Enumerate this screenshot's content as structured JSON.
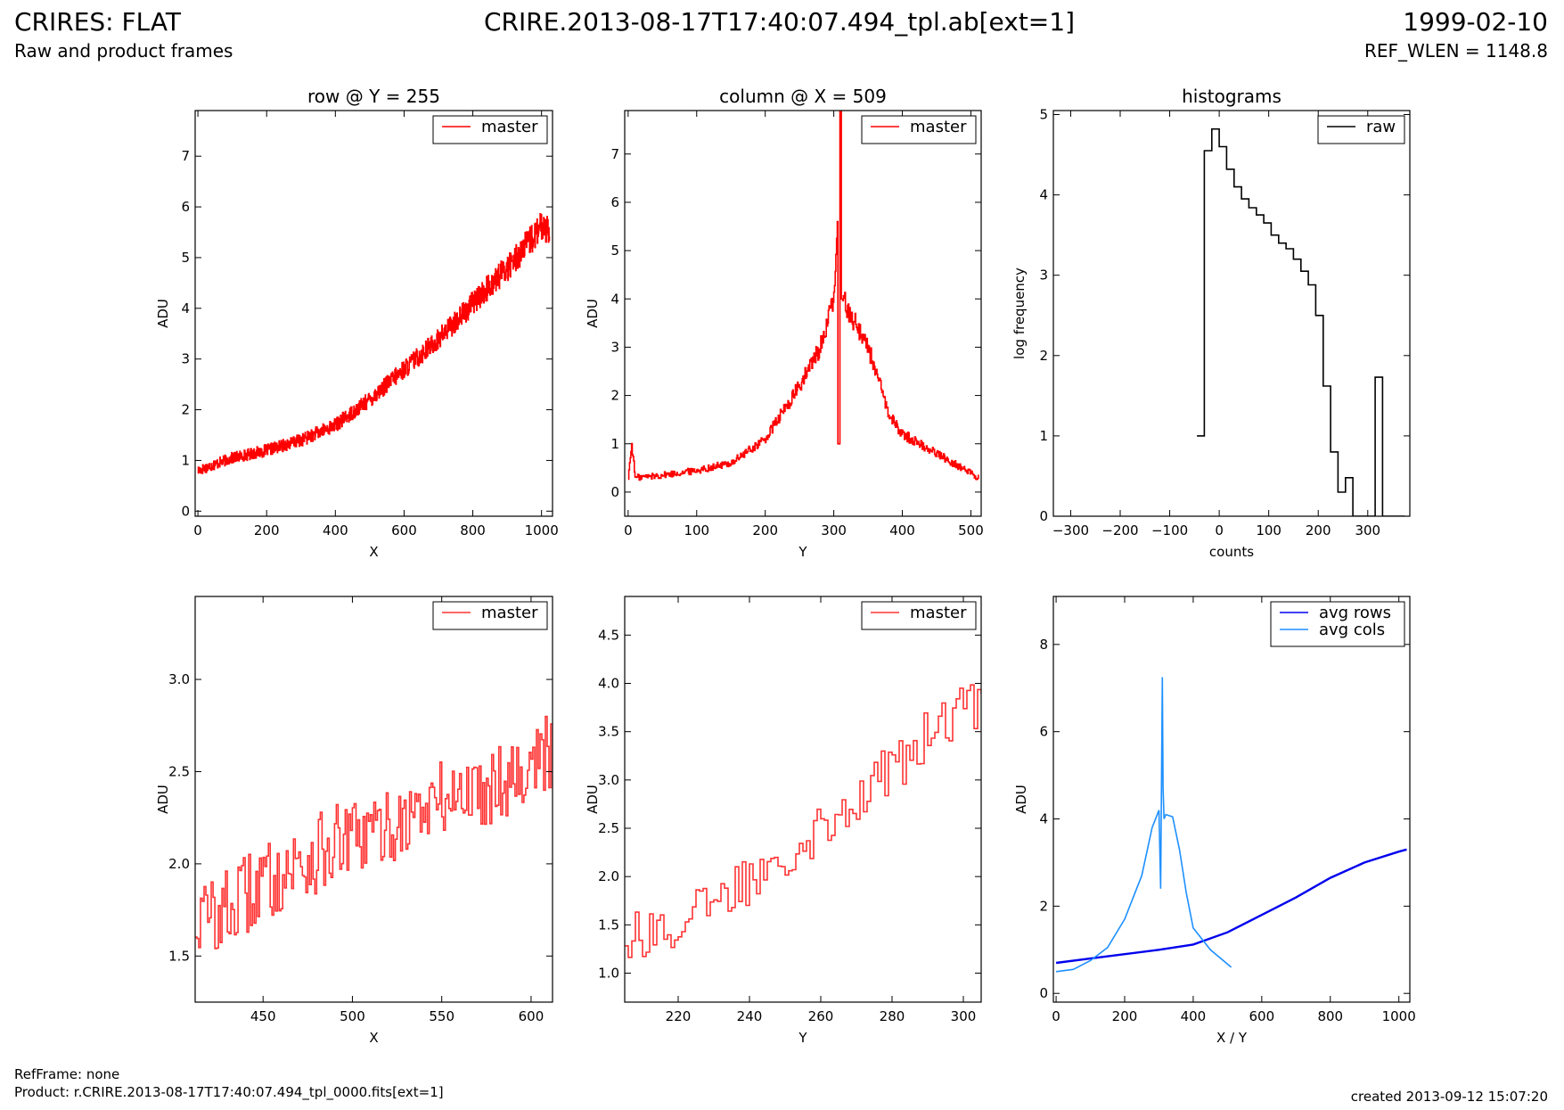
{
  "header": {
    "title_left": "CRIRES: FLAT",
    "subtitle_left": "Raw and product frames",
    "title_center": "CRIRE.2013-08-17T17:40:07.494_tpl.ab[ext=1]",
    "title_right": "1999-02-10",
    "subtitle_right": "REF_WLEN = 1148.8"
  },
  "footer": {
    "refframe": "RefFrame: none",
    "product": "Product: r.CRIRE.2013-08-17T17:40:07.494_tpl_0000.fits[ext=1]",
    "created": "created 2013-09-12 15:07:20"
  },
  "colors": {
    "master": "#ff0000",
    "raw": "#000000",
    "avg_rows": "#0000ee",
    "avg_cols": "#1e90ff"
  },
  "chart_data": [
    {
      "type": "line",
      "title": "row @ Y = 255",
      "xlabel": "X",
      "ylabel": "ADU",
      "xlim": [
        -8,
        1032
      ],
      "ylim": [
        -0.1,
        7.9
      ],
      "xticks": [
        0,
        200,
        400,
        600,
        800,
        1000
      ],
      "yticks": [
        0,
        1,
        2,
        3,
        4,
        5,
        6,
        7
      ],
      "legend": "top-right",
      "series": [
        {
          "name": "master",
          "color": "#ff0000",
          "step": true,
          "x": [
            0,
            100,
            200,
            300,
            400,
            500,
            600,
            700,
            800,
            900,
            1000,
            1023
          ],
          "y": [
            0.8,
            1.05,
            1.2,
            1.4,
            1.7,
            2.2,
            2.8,
            3.4,
            4.1,
            4.8,
            5.6,
            5.6
          ]
        }
      ]
    },
    {
      "type": "line",
      "title": "column @ X = 509",
      "xlabel": "Y",
      "ylabel": "ADU",
      "xlim": [
        -5,
        515
      ],
      "ylim": [
        -0.5,
        7.9
      ],
      "xticks": [
        0,
        100,
        200,
        300,
        400,
        500
      ],
      "yticks": [
        0,
        1,
        2,
        3,
        4,
        5,
        6,
        7
      ],
      "legend": "top-right",
      "series": [
        {
          "name": "master",
          "color": "#ff0000",
          "step": true,
          "x": [
            0,
            5,
            10,
            50,
            100,
            150,
            200,
            250,
            280,
            300,
            305,
            306,
            308,
            309,
            310,
            311,
            312,
            320,
            350,
            380,
            400,
            450,
            511
          ],
          "y": [
            0.3,
            1.0,
            0.3,
            0.35,
            0.45,
            0.6,
            1.1,
            2.2,
            3.0,
            4.0,
            5.6,
            1.0,
            1.0,
            8.0,
            8.0,
            4.0,
            4.0,
            3.8,
            3.0,
            1.6,
            1.2,
            0.8,
            0.3
          ]
        }
      ]
    },
    {
      "type": "line",
      "title": "histograms",
      "xlabel": "counts",
      "ylabel": "log frequency",
      "xlim": [
        -335,
        385
      ],
      "ylim": [
        0,
        5.05
      ],
      "xticks": [
        -300,
        -200,
        -100,
        0,
        100,
        200,
        300
      ],
      "yticks": [
        0,
        1,
        2,
        3,
        4,
        5
      ],
      "legend": "top-right",
      "series": [
        {
          "name": "raw",
          "color": "#000000",
          "step": true,
          "x": [
            -45,
            -30,
            -15,
            0,
            15,
            30,
            45,
            60,
            75,
            90,
            105,
            120,
            135,
            150,
            165,
            180,
            195,
            210,
            225,
            240,
            255,
            270,
            285,
            300,
            315,
            330,
            345,
            360,
            375
          ],
          "y": [
            1.0,
            4.55,
            4.82,
            4.6,
            4.32,
            4.1,
            3.95,
            3.84,
            3.75,
            3.65,
            3.5,
            3.4,
            3.33,
            3.2,
            3.05,
            2.88,
            2.5,
            1.62,
            0.8,
            0.3,
            0.48,
            0,
            0,
            0,
            1.73,
            0,
            0,
            0,
            0
          ]
        }
      ]
    },
    {
      "type": "line",
      "title": "",
      "xlabel": "X",
      "ylabel": "ADU",
      "xlim": [
        412,
        612
      ],
      "ylim": [
        1.25,
        3.45
      ],
      "xticks": [
        450,
        500,
        550,
        600
      ],
      "yticks": [
        1.5,
        2.0,
        2.5,
        3.0
      ],
      "legend": "top-right",
      "series": [
        {
          "name": "master",
          "color": "#ff3333",
          "step": true,
          "x": [
            412,
            430,
            450,
            470,
            490,
            510,
            530,
            550,
            570,
            590,
            612
          ],
          "y": [
            1.7,
            1.75,
            1.9,
            2.0,
            2.1,
            2.15,
            2.25,
            2.35,
            2.4,
            2.5,
            2.6
          ]
        }
      ]
    },
    {
      "type": "line",
      "title": "",
      "xlabel": "Y",
      "ylabel": "ADU",
      "xlim": [
        205,
        305
      ],
      "ylim": [
        0.7,
        4.9
      ],
      "xticks": [
        220,
        240,
        260,
        280,
        300
      ],
      "yticks": [
        1.0,
        1.5,
        2.0,
        2.5,
        3.0,
        3.5,
        4.0,
        4.5
      ],
      "legend": "top-right",
      "series": [
        {
          "name": "master",
          "color": "#ff3333",
          "step": true,
          "x": [
            205,
            215,
            225,
            235,
            245,
            255,
            265,
            275,
            285,
            295,
            305
          ],
          "y": [
            1.4,
            1.45,
            1.6,
            1.85,
            2.15,
            2.4,
            2.7,
            2.95,
            3.3,
            3.6,
            3.85
          ]
        }
      ]
    },
    {
      "type": "line",
      "title": "",
      "xlabel": "X / Y",
      "ylabel": "ADU",
      "xlim": [
        -8,
        1032
      ],
      "ylim": [
        -0.2,
        9.1
      ],
      "xticks": [
        0,
        200,
        400,
        600,
        800,
        1000
      ],
      "yticks": [
        0,
        2,
        4,
        6,
        8
      ],
      "legend": "top-right",
      "series": [
        {
          "name": "avg rows",
          "color": "#0000ee",
          "x": [
            0,
            100,
            200,
            300,
            400,
            500,
            600,
            700,
            800,
            900,
            1000,
            1023
          ],
          "y": [
            0.7,
            0.8,
            0.9,
            1.0,
            1.12,
            1.4,
            1.8,
            2.2,
            2.65,
            3.0,
            3.25,
            3.3
          ]
        },
        {
          "name": "avg cols",
          "color": "#1e90ff",
          "x": [
            0,
            50,
            100,
            150,
            200,
            250,
            280,
            300,
            305,
            310,
            312,
            315,
            320,
            340,
            360,
            380,
            400,
            450,
            511
          ],
          "y": [
            0.5,
            0.55,
            0.75,
            1.05,
            1.7,
            2.7,
            3.8,
            4.2,
            2.4,
            7.25,
            4.7,
            4.0,
            4.1,
            4.05,
            3.3,
            2.3,
            1.5,
            1.0,
            0.6
          ]
        }
      ]
    }
  ]
}
